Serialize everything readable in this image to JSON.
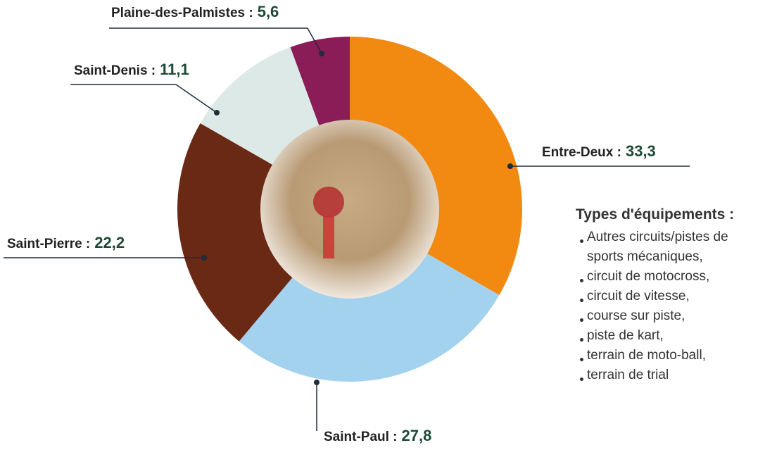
{
  "chart_data": {
    "type": "donut",
    "categories": [
      "Entre-Deux :",
      "Saint-Paul :",
      "Saint-Pierre :",
      "Saint-Denis :",
      "Plaine-des-Palmistes :"
    ],
    "values": [
      33.3,
      27.8,
      22.2,
      11.1,
      5.6
    ],
    "value_labels": [
      "33,3",
      "27,8",
      "22,2",
      "11,1",
      "5,6"
    ],
    "colors": [
      "#f28a12",
      "#a3d2ef",
      "#6a2915",
      "#dde9e7",
      "#8a1c58"
    ],
    "legend": {
      "title": "Types d'équipements :",
      "items": [
        "Autres circuits/pistes de sports mécaniques,",
        "circuit de motocross,",
        "circuit de vitesse,",
        "course sur piste,",
        "piste de kart,",
        "terrain de moto-ball,",
        "terrain de trial"
      ]
    }
  }
}
